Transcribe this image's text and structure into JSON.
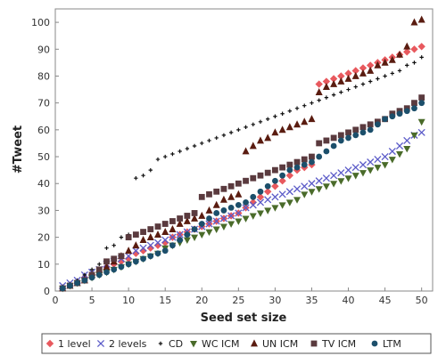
{
  "chart_data": {
    "type": "scatter",
    "xlabel": "Seed set size",
    "ylabel": "#Tweet",
    "xlim": [
      0,
      51.5
    ],
    "ylim": [
      0,
      105
    ],
    "x_ticks": [
      0,
      5,
      10,
      15,
      20,
      25,
      30,
      35,
      40,
      45,
      50
    ],
    "y_ticks": [
      0,
      10,
      20,
      30,
      40,
      50,
      60,
      70,
      80,
      90,
      100
    ],
    "grid": false,
    "legend_position": "bottom",
    "x": [
      1,
      2,
      3,
      4,
      5,
      6,
      7,
      8,
      9,
      10,
      11,
      12,
      13,
      14,
      15,
      16,
      17,
      18,
      19,
      20,
      21,
      22,
      23,
      24,
      25,
      26,
      27,
      28,
      29,
      30,
      31,
      32,
      33,
      34,
      35,
      36,
      37,
      38,
      39,
      40,
      41,
      42,
      43,
      44,
      45,
      46,
      47,
      48,
      49,
      50
    ],
    "series": [
      {
        "name": "1 level",
        "marker": "diamond",
        "color": "#e8595e",
        "values": [
          1,
          2,
          3,
          5,
          6,
          7,
          9,
          10,
          11,
          12,
          14,
          15,
          16,
          17,
          18,
          20,
          21,
          22,
          23,
          24,
          25,
          26,
          27,
          28,
          29,
          31,
          33,
          35,
          37,
          39,
          41,
          43,
          45,
          46,
          47,
          77,
          78,
          79,
          80,
          81,
          82,
          83,
          84,
          85,
          86,
          87,
          88,
          89,
          90,
          91
        ]
      },
      {
        "name": "2 levels",
        "marker": "cross",
        "color": "#5b5bc8",
        "values": [
          2,
          3,
          4,
          6,
          7,
          8,
          10,
          11,
          12,
          13,
          15,
          16,
          17,
          18,
          19,
          20,
          21,
          22,
          23,
          24,
          25,
          26,
          27,
          28,
          29,
          31,
          32,
          33,
          34,
          35,
          36,
          37,
          38,
          39,
          40,
          41,
          42,
          43,
          44,
          45,
          46,
          47,
          48,
          49,
          50,
          52,
          54,
          56,
          58,
          59
        ]
      },
      {
        "name": "CD",
        "marker": "plus",
        "color": "#111111",
        "values": [
          1,
          2,
          4,
          6,
          8,
          10,
          16,
          17,
          20,
          21,
          42,
          43,
          45,
          49,
          50,
          51,
          52,
          53,
          54,
          55,
          56,
          57,
          58,
          59,
          60,
          61,
          62,
          63,
          64,
          65,
          66,
          67,
          68,
          69,
          70,
          71,
          72,
          73,
          74,
          75,
          76,
          77,
          78,
          79,
          80,
          81,
          82,
          84,
          85,
          87
        ]
      },
      {
        "name": "WC ICM",
        "marker": "triangle-down",
        "color": "#4a6b2a",
        "values": [
          1,
          2,
          3,
          4,
          5,
          6,
          7,
          8,
          9,
          10,
          11,
          12,
          13,
          14,
          16,
          17,
          18,
          19,
          20,
          21,
          22,
          23,
          24,
          25,
          26,
          27,
          28,
          29,
          30,
          31,
          32,
          33,
          34,
          36,
          37,
          38,
          39,
          40,
          41,
          42,
          43,
          44,
          45,
          46,
          47,
          49,
          51,
          53,
          58,
          63
        ]
      },
      {
        "name": "UN ICM",
        "marker": "triangle-up",
        "color": "#5a1c10",
        "values": [
          1,
          2,
          3,
          4,
          6,
          7,
          9,
          11,
          13,
          15,
          17,
          19,
          20,
          21,
          22,
          23,
          25,
          26,
          27,
          28,
          30,
          32,
          34,
          35,
          36,
          52,
          54,
          56,
          57,
          59,
          60,
          61,
          62,
          63,
          64,
          74,
          76,
          77,
          78,
          79,
          80,
          81,
          82,
          84,
          85,
          86,
          88,
          91,
          100,
          101
        ]
      },
      {
        "name": "TV ICM",
        "marker": "square",
        "color": "#5a3a3e",
        "values": [
          1,
          2,
          3,
          4,
          6,
          8,
          11,
          12,
          13,
          20,
          21,
          22,
          23,
          24,
          25,
          26,
          27,
          28,
          29,
          35,
          36,
          37,
          38,
          39,
          40,
          41,
          42,
          43,
          44,
          45,
          46,
          47,
          48,
          49,
          50,
          55,
          56,
          57,
          58,
          59,
          60,
          61,
          62,
          63,
          64,
          66,
          67,
          68,
          70,
          72
        ]
      },
      {
        "name": "LTM",
        "marker": "circle",
        "color": "#1c4f6b",
        "values": [
          1,
          2,
          3,
          4,
          5,
          6,
          7,
          8,
          9,
          10,
          11,
          12,
          13,
          14,
          15,
          17,
          19,
          21,
          23,
          25,
          27,
          29,
          30,
          31,
          32,
          33,
          35,
          37,
          39,
          41,
          43,
          45,
          46,
          47,
          48,
          50,
          52,
          54,
          56,
          57,
          58,
          59,
          60,
          62,
          64,
          65,
          66,
          67,
          68,
          70
        ]
      }
    ]
  }
}
